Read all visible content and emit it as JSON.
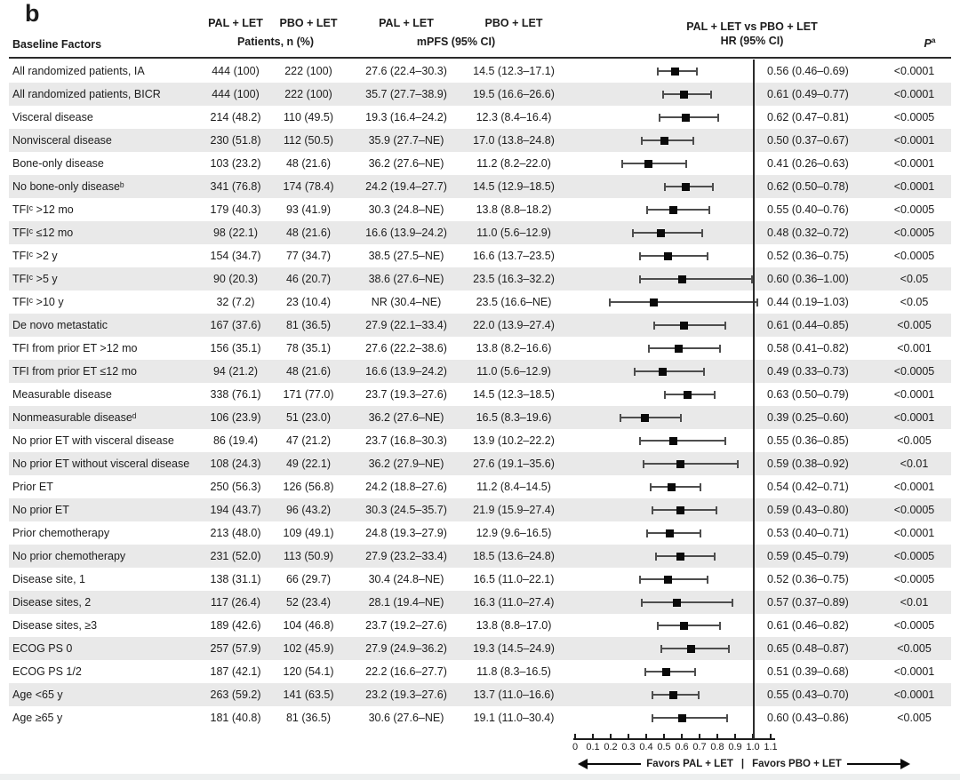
{
  "figure": {
    "panel_label": "b",
    "columns": {
      "baseline_factors": "Baseline Factors",
      "patients": {
        "pal": "PAL + LET",
        "pbo": "PBO + LET",
        "subtitle": "Patients, n (%)"
      },
      "mpfs": {
        "pal": "PAL + LET",
        "pbo": "PBO + LET",
        "subtitle": "mPFS (95% CI)"
      },
      "hr": {
        "title": "PAL + LET vs PBO + LET",
        "subtitle": "HR (95% CI)"
      },
      "p_label": "P",
      "p_superscript": "a"
    }
  },
  "chart_data": {
    "type": "forest",
    "xlabel": "HR (95% CI)",
    "axis": {
      "min": 0,
      "max": 1.1,
      "reference_line": 1.0,
      "ticks": [
        "0",
        "0.1",
        "0.2",
        "0.3",
        "0.4",
        "0.5",
        "0.6",
        "0.7",
        "0.8",
        "0.9",
        "1.0",
        "1.1"
      ]
    },
    "favors": {
      "left": "Favors PAL + LET",
      "separator": "|",
      "right": "Favors PBO + LET"
    },
    "rows": [
      {
        "label": "All randomized patients, IA",
        "pal_n": "444 (100)",
        "pbo_n": "222 (100)",
        "pal_mpfs": "27.6 (22.4–30.3)",
        "pbo_mpfs": "14.5 (12.3–17.1)",
        "hr": 0.56,
        "lo": 0.46,
        "hi": 0.69,
        "hr_text": "0.56 (0.46–0.69)",
        "p": "<0.0001"
      },
      {
        "label": "All randomized patients, BICR",
        "pal_n": "444 (100)",
        "pbo_n": "222 (100)",
        "pal_mpfs": "35.7 (27.7–38.9)",
        "pbo_mpfs": "19.5 (16.6–26.6)",
        "hr": 0.61,
        "lo": 0.49,
        "hi": 0.77,
        "hr_text": "0.61 (0.49–0.77)",
        "p": "<0.0001"
      },
      {
        "label": "Visceral disease",
        "pal_n": "214 (48.2)",
        "pbo_n": "110 (49.5)",
        "pal_mpfs": "19.3 (16.4–24.2)",
        "pbo_mpfs": "12.3 (8.4–16.4)",
        "hr": 0.62,
        "lo": 0.47,
        "hi": 0.81,
        "hr_text": "0.62 (0.47–0.81)",
        "p": "<0.0005"
      },
      {
        "label": "Nonvisceral disease",
        "pal_n": "230 (51.8)",
        "pbo_n": "112 (50.5)",
        "pal_mpfs": "35.9 (27.7–NE)",
        "pbo_mpfs": "17.0 (13.8–24.8)",
        "hr": 0.5,
        "lo": 0.37,
        "hi": 0.67,
        "hr_text": "0.50 (0.37–0.67)",
        "p": "<0.0001"
      },
      {
        "label": "Bone-only disease",
        "pal_n": "103 (23.2)",
        "pbo_n": "48 (21.6)",
        "pal_mpfs": "36.2 (27.6–NE)",
        "pbo_mpfs": "11.2 (8.2–22.0)",
        "hr": 0.41,
        "lo": 0.26,
        "hi": 0.63,
        "hr_text": "0.41 (0.26–0.63)",
        "p": "<0.0001"
      },
      {
        "label": "No bone-only diseaseᵇ",
        "pal_n": "341 (76.8)",
        "pbo_n": "174 (78.4)",
        "pal_mpfs": "24.2 (19.4–27.7)",
        "pbo_mpfs": "14.5 (12.9–18.5)",
        "hr": 0.62,
        "lo": 0.5,
        "hi": 0.78,
        "hr_text": "0.62 (0.50–0.78)",
        "p": "<0.0001"
      },
      {
        "label": "TFIᶜ >12 mo",
        "pal_n": "179 (40.3)",
        "pbo_n": "93 (41.9)",
        "pal_mpfs": "30.3 (24.8–NE)",
        "pbo_mpfs": "13.8 (8.8–18.2)",
        "hr": 0.55,
        "lo": 0.4,
        "hi": 0.76,
        "hr_text": "0.55 (0.40–0.76)",
        "p": "<0.0005"
      },
      {
        "label": "TFIᶜ ≤12 mo",
        "pal_n": "98 (22.1)",
        "pbo_n": "48 (21.6)",
        "pal_mpfs": "16.6 (13.9–24.2)",
        "pbo_mpfs": "11.0 (5.6–12.9)",
        "hr": 0.48,
        "lo": 0.32,
        "hi": 0.72,
        "hr_text": "0.48 (0.32–0.72)",
        "p": "<0.0005"
      },
      {
        "label": "TFIᶜ >2 y",
        "pal_n": "154 (34.7)",
        "pbo_n": "77 (34.7)",
        "pal_mpfs": "38.5 (27.5–NE)",
        "pbo_mpfs": "16.6 (13.7–23.5)",
        "hr": 0.52,
        "lo": 0.36,
        "hi": 0.75,
        "hr_text": "0.52 (0.36–0.75)",
        "p": "<0.0005"
      },
      {
        "label": "TFIᶜ >5 y",
        "pal_n": "90 (20.3)",
        "pbo_n": "46 (20.7)",
        "pal_mpfs": "38.6 (27.6–NE)",
        "pbo_mpfs": "23.5 (16.3–32.2)",
        "hr": 0.6,
        "lo": 0.36,
        "hi": 1.0,
        "hr_text": "0.60 (0.36–1.00)",
        "p": "<0.05"
      },
      {
        "label": "TFIᶜ >10 y",
        "pal_n": "32 (7.2)",
        "pbo_n": "23 (10.4)",
        "pal_mpfs": "NR (30.4–NE)",
        "pbo_mpfs": "23.5 (16.6–NE)",
        "hr": 0.44,
        "lo": 0.19,
        "hi": 1.03,
        "hr_text": "0.44 (0.19–1.03)",
        "p": "<0.05"
      },
      {
        "label": "De novo metastatic",
        "pal_n": "167 (37.6)",
        "pbo_n": "81 (36.5)",
        "pal_mpfs": "27.9 (22.1–33.4)",
        "pbo_mpfs": "22.0 (13.9–27.4)",
        "hr": 0.61,
        "lo": 0.44,
        "hi": 0.85,
        "hr_text": "0.61 (0.44–0.85)",
        "p": "<0.005"
      },
      {
        "label": "TFI from prior ET >12 mo",
        "pal_n": "156 (35.1)",
        "pbo_n": "78 (35.1)",
        "pal_mpfs": "27.6 (22.2–38.6)",
        "pbo_mpfs": "13.8 (8.2–16.6)",
        "hr": 0.58,
        "lo": 0.41,
        "hi": 0.82,
        "hr_text": "0.58 (0.41–0.82)",
        "p": "<0.001"
      },
      {
        "label": "TFI from prior ET ≤12 mo",
        "pal_n": "94 (21.2)",
        "pbo_n": "48 (21.6)",
        "pal_mpfs": "16.6 (13.9–24.2)",
        "pbo_mpfs": "11.0 (5.6–12.9)",
        "hr": 0.49,
        "lo": 0.33,
        "hi": 0.73,
        "hr_text": "0.49 (0.33–0.73)",
        "p": "<0.0005"
      },
      {
        "label": "Measurable disease",
        "pal_n": "338 (76.1)",
        "pbo_n": "171 (77.0)",
        "pal_mpfs": "23.7 (19.3–27.6)",
        "pbo_mpfs": "14.5 (12.3–18.5)",
        "hr": 0.63,
        "lo": 0.5,
        "hi": 0.79,
        "hr_text": "0.63 (0.50–0.79)",
        "p": "<0.0001"
      },
      {
        "label": "Nonmeasurable diseaseᵈ",
        "pal_n": "106 (23.9)",
        "pbo_n": "51 (23.0)",
        "pal_mpfs": "36.2 (27.6–NE)",
        "pbo_mpfs": "16.5 (8.3–19.6)",
        "hr": 0.39,
        "lo": 0.25,
        "hi": 0.6,
        "hr_text": "0.39 (0.25–0.60)",
        "p": "<0.0001"
      },
      {
        "label": "No prior ET with visceral disease",
        "pal_n": "86 (19.4)",
        "pbo_n": "47 (21.2)",
        "pal_mpfs": "23.7 (16.8–30.3)",
        "pbo_mpfs": "13.9 (10.2–22.2)",
        "hr": 0.55,
        "lo": 0.36,
        "hi": 0.85,
        "hr_text": "0.55 (0.36–0.85)",
        "p": "<0.005"
      },
      {
        "label": "No prior ET without visceral disease",
        "pal_n": "108 (24.3)",
        "pbo_n": "49 (22.1)",
        "pal_mpfs": "36.2 (27.9–NE)",
        "pbo_mpfs": "27.6 (19.1–35.6)",
        "hr": 0.59,
        "lo": 0.38,
        "hi": 0.92,
        "hr_text": "0.59 (0.38–0.92)",
        "p": "<0.01"
      },
      {
        "label": "Prior ET",
        "pal_n": "250 (56.3)",
        "pbo_n": "126 (56.8)",
        "pal_mpfs": "24.2 (18.8–27.6)",
        "pbo_mpfs": "11.2 (8.4–14.5)",
        "hr": 0.54,
        "lo": 0.42,
        "hi": 0.71,
        "hr_text": "0.54 (0.42–0.71)",
        "p": "<0.0001"
      },
      {
        "label": "No prior ET",
        "pal_n": "194 (43.7)",
        "pbo_n": "96 (43.2)",
        "pal_mpfs": "30.3 (24.5–35.7)",
        "pbo_mpfs": "21.9 (15.9–27.4)",
        "hr": 0.59,
        "lo": 0.43,
        "hi": 0.8,
        "hr_text": "0.59 (0.43–0.80)",
        "p": "<0.0005"
      },
      {
        "label": "Prior chemotherapy",
        "pal_n": "213 (48.0)",
        "pbo_n": "109 (49.1)",
        "pal_mpfs": "24.8 (19.3–27.9)",
        "pbo_mpfs": "12.9 (9.6–16.5)",
        "hr": 0.53,
        "lo": 0.4,
        "hi": 0.71,
        "hr_text": "0.53 (0.40–0.71)",
        "p": "<0.0001"
      },
      {
        "label": "No prior chemotherapy",
        "pal_n": "231 (52.0)",
        "pbo_n": "113 (50.9)",
        "pal_mpfs": "27.9 (23.2–33.4)",
        "pbo_mpfs": "18.5 (13.6–24.8)",
        "hr": 0.59,
        "lo": 0.45,
        "hi": 0.79,
        "hr_text": "0.59 (0.45–0.79)",
        "p": "<0.0005"
      },
      {
        "label": "Disease site, 1",
        "pal_n": "138 (31.1)",
        "pbo_n": "66 (29.7)",
        "pal_mpfs": "30.4 (24.8–NE)",
        "pbo_mpfs": "16.5 (11.0–22.1)",
        "hr": 0.52,
        "lo": 0.36,
        "hi": 0.75,
        "hr_text": "0.52 (0.36–0.75)",
        "p": "<0.0005"
      },
      {
        "label": "Disease sites, 2",
        "pal_n": "117 (26.4)",
        "pbo_n": "52 (23.4)",
        "pal_mpfs": "28.1 (19.4–NE)",
        "pbo_mpfs": "16.3 (11.0–27.4)",
        "hr": 0.57,
        "lo": 0.37,
        "hi": 0.89,
        "hr_text": "0.57 (0.37–0.89)",
        "p": "<0.01"
      },
      {
        "label": "Disease sites, ≥3",
        "pal_n": "189 (42.6)",
        "pbo_n": "104 (46.8)",
        "pal_mpfs": "23.7 (19.2–27.6)",
        "pbo_mpfs": "13.8 (8.8–17.0)",
        "hr": 0.61,
        "lo": 0.46,
        "hi": 0.82,
        "hr_text": "0.61 (0.46–0.82)",
        "p": "<0.0005"
      },
      {
        "label": "ECOG PS 0",
        "pal_n": "257 (57.9)",
        "pbo_n": "102 (45.9)",
        "pal_mpfs": "27.9 (24.9–36.2)",
        "pbo_mpfs": "19.3 (14.5–24.9)",
        "hr": 0.65,
        "lo": 0.48,
        "hi": 0.87,
        "hr_text": "0.65 (0.48–0.87)",
        "p": "<0.005"
      },
      {
        "label": "ECOG PS 1/2",
        "pal_n": "187 (42.1)",
        "pbo_n": "120 (54.1)",
        "pal_mpfs": "22.2 (16.6–27.7)",
        "pbo_mpfs": "11.8 (8.3–16.5)",
        "hr": 0.51,
        "lo": 0.39,
        "hi": 0.68,
        "hr_text": "0.51 (0.39–0.68)",
        "p": "<0.0001"
      },
      {
        "label": "Age <65 y",
        "pal_n": "263 (59.2)",
        "pbo_n": "141 (63.5)",
        "pal_mpfs": "23.2 (19.3–27.6)",
        "pbo_mpfs": "13.7 (11.0–16.6)",
        "hr": 0.55,
        "lo": 0.43,
        "hi": 0.7,
        "hr_text": "0.55 (0.43–0.70)",
        "p": "<0.0001"
      },
      {
        "label": "Age ≥65 y",
        "pal_n": "181 (40.8)",
        "pbo_n": "81 (36.5)",
        "pal_mpfs": "30.6 (27.6–NE)",
        "pbo_mpfs": "19.1 (11.0–30.4)",
        "hr": 0.6,
        "lo": 0.43,
        "hi": 0.86,
        "hr_text": "0.60 (0.43–0.86)",
        "p": "<0.005"
      }
    ]
  }
}
